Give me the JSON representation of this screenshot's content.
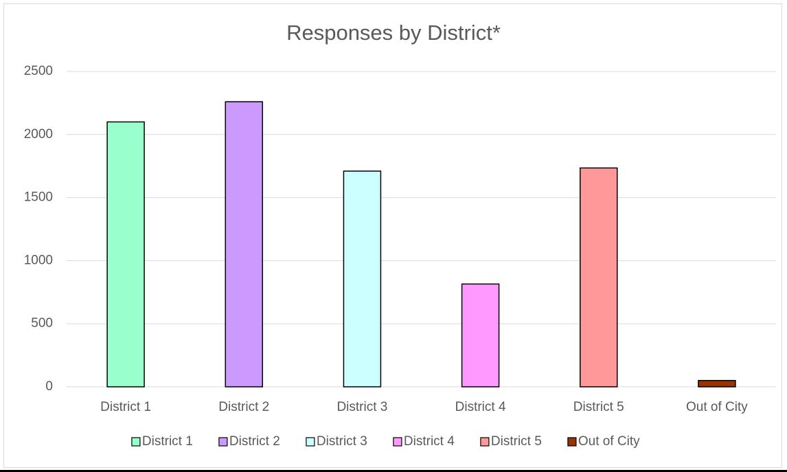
{
  "chart_data": {
    "type": "bar",
    "title": "Responses by District*",
    "categories": [
      "District 1",
      "District 2",
      "District 3",
      "District 4",
      "District 5",
      "Out of City"
    ],
    "values": [
      2100,
      2260,
      1710,
      815,
      1735,
      50
    ],
    "colors": [
      "#99ffcc",
      "#cc99ff",
      "#ccffff",
      "#ff99ff",
      "#ff9999",
      "#993300"
    ],
    "ylim": [
      0,
      2500
    ],
    "yticks": [
      0,
      500,
      1000,
      1500,
      2000,
      2500
    ],
    "xlabel": "",
    "ylabel": "",
    "grid": true,
    "legend": {
      "position": "bottom",
      "entries": [
        "District 1",
        "District 2",
        "District 3",
        "District 4",
        "District 5",
        "Out of City"
      ]
    }
  }
}
